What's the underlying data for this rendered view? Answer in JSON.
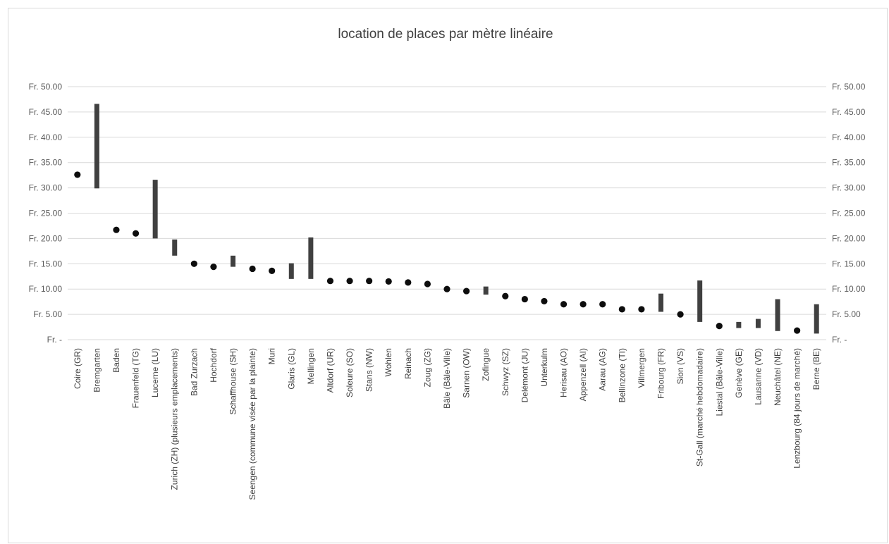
{
  "chart_data": {
    "type": "range-and-point",
    "title": "location de places par mètre linéaire",
    "ylim": [
      0,
      50
    ],
    "y_ticks": [
      {
        "value": 0,
        "label": "Fr. -"
      },
      {
        "value": 5,
        "label": "Fr. 5.00"
      },
      {
        "value": 10,
        "label": "Fr. 10.00"
      },
      {
        "value": 15,
        "label": "Fr. 15.00"
      },
      {
        "value": 20,
        "label": "Fr. 20.00"
      },
      {
        "value": 25,
        "label": "Fr. 25.00"
      },
      {
        "value": 30,
        "label": "Fr. 30.00"
      },
      {
        "value": 35,
        "label": "Fr. 35.00"
      },
      {
        "value": 40,
        "label": "Fr. 40.00"
      },
      {
        "value": 45,
        "label": "Fr. 45.00"
      },
      {
        "value": 50,
        "label": "Fr. 50.00"
      }
    ],
    "grid": true,
    "secondary_axis": true,
    "categories": [
      {
        "label": "Coire (GR)",
        "value": 32.6
      },
      {
        "label": "Bremgarten",
        "min": 29.9,
        "max": 46.6
      },
      {
        "label": "Baden",
        "value": 21.7
      },
      {
        "label": "Frauenfeld (TG)",
        "value": 21.0
      },
      {
        "label": "Lucerne (LU)",
        "min": 20.0,
        "max": 31.6
      },
      {
        "label": "Zurich (ZH) (plusieurs emplacements)",
        "min": 16.6,
        "max": 19.8
      },
      {
        "label": "Bad Zurzach",
        "value": 15.0
      },
      {
        "label": "Hochdorf",
        "value": 14.4
      },
      {
        "label": "Schaffhouse (SH)",
        "min": 14.4,
        "max": 16.6
      },
      {
        "label": "Seengen (commune visée par la plainte)",
        "value": 14.0
      },
      {
        "label": "Muri",
        "value": 13.6
      },
      {
        "label": "Glaris (GL)",
        "min": 12.0,
        "max": 15.1
      },
      {
        "label": "Mellingen",
        "min": 12.0,
        "max": 20.2
      },
      {
        "label": "Altdorf (UR)",
        "value": 11.6
      },
      {
        "label": "Soleure (SO)",
        "value": 11.6
      },
      {
        "label": "Stans (NW)",
        "value": 11.6
      },
      {
        "label": "Wohlen",
        "value": 11.5
      },
      {
        "label": "Reinach",
        "value": 11.3
      },
      {
        "label": "Zoug (ZG)",
        "value": 11.0
      },
      {
        "label": "Bâle (Bâle-Ville)",
        "value": 10.0
      },
      {
        "label": "Sarnen (OW)",
        "value": 9.6
      },
      {
        "label": "Zofingue",
        "min": 8.9,
        "max": 10.5
      },
      {
        "label": "Schwyz (SZ)",
        "value": 8.6
      },
      {
        "label": "Delémont (JU)",
        "value": 8.0
      },
      {
        "label": "Unterkulm",
        "value": 7.6
      },
      {
        "label": "Herisau (AO)",
        "value": 7.0
      },
      {
        "label": "Appenzell (AI)",
        "value": 7.0
      },
      {
        "label": "Aarau (AG)",
        "value": 7.0
      },
      {
        "label": "Bellinzone (TI)",
        "value": 6.0
      },
      {
        "label": "Villmergen",
        "value": 6.0
      },
      {
        "label": "Fribourg (FR)",
        "min": 5.5,
        "max": 9.1
      },
      {
        "label": "Sion (VS)",
        "value": 5.0
      },
      {
        "label": "St-Gall (marché hebdomadaire)",
        "min": 3.5,
        "max": 11.7
      },
      {
        "label": "Liestal (Bâle-Ville)",
        "value": 2.7
      },
      {
        "label": "Genève (GE)",
        "min": 2.3,
        "max": 3.5
      },
      {
        "label": "Lausanne (VD)",
        "min": 2.3,
        "max": 4.1
      },
      {
        "label": "Neuchâtel (NE)",
        "min": 1.7,
        "max": 8.0
      },
      {
        "label": "Lenzbourg (84 jours de marché)",
        "value": 1.8
      },
      {
        "label": "Berne (BE)",
        "min": 1.2,
        "max": 7.0
      }
    ],
    "colors": {
      "marks": "#404040",
      "points": "#0d0d0d",
      "grid": "#d9d9d9",
      "text": "#595959"
    }
  }
}
